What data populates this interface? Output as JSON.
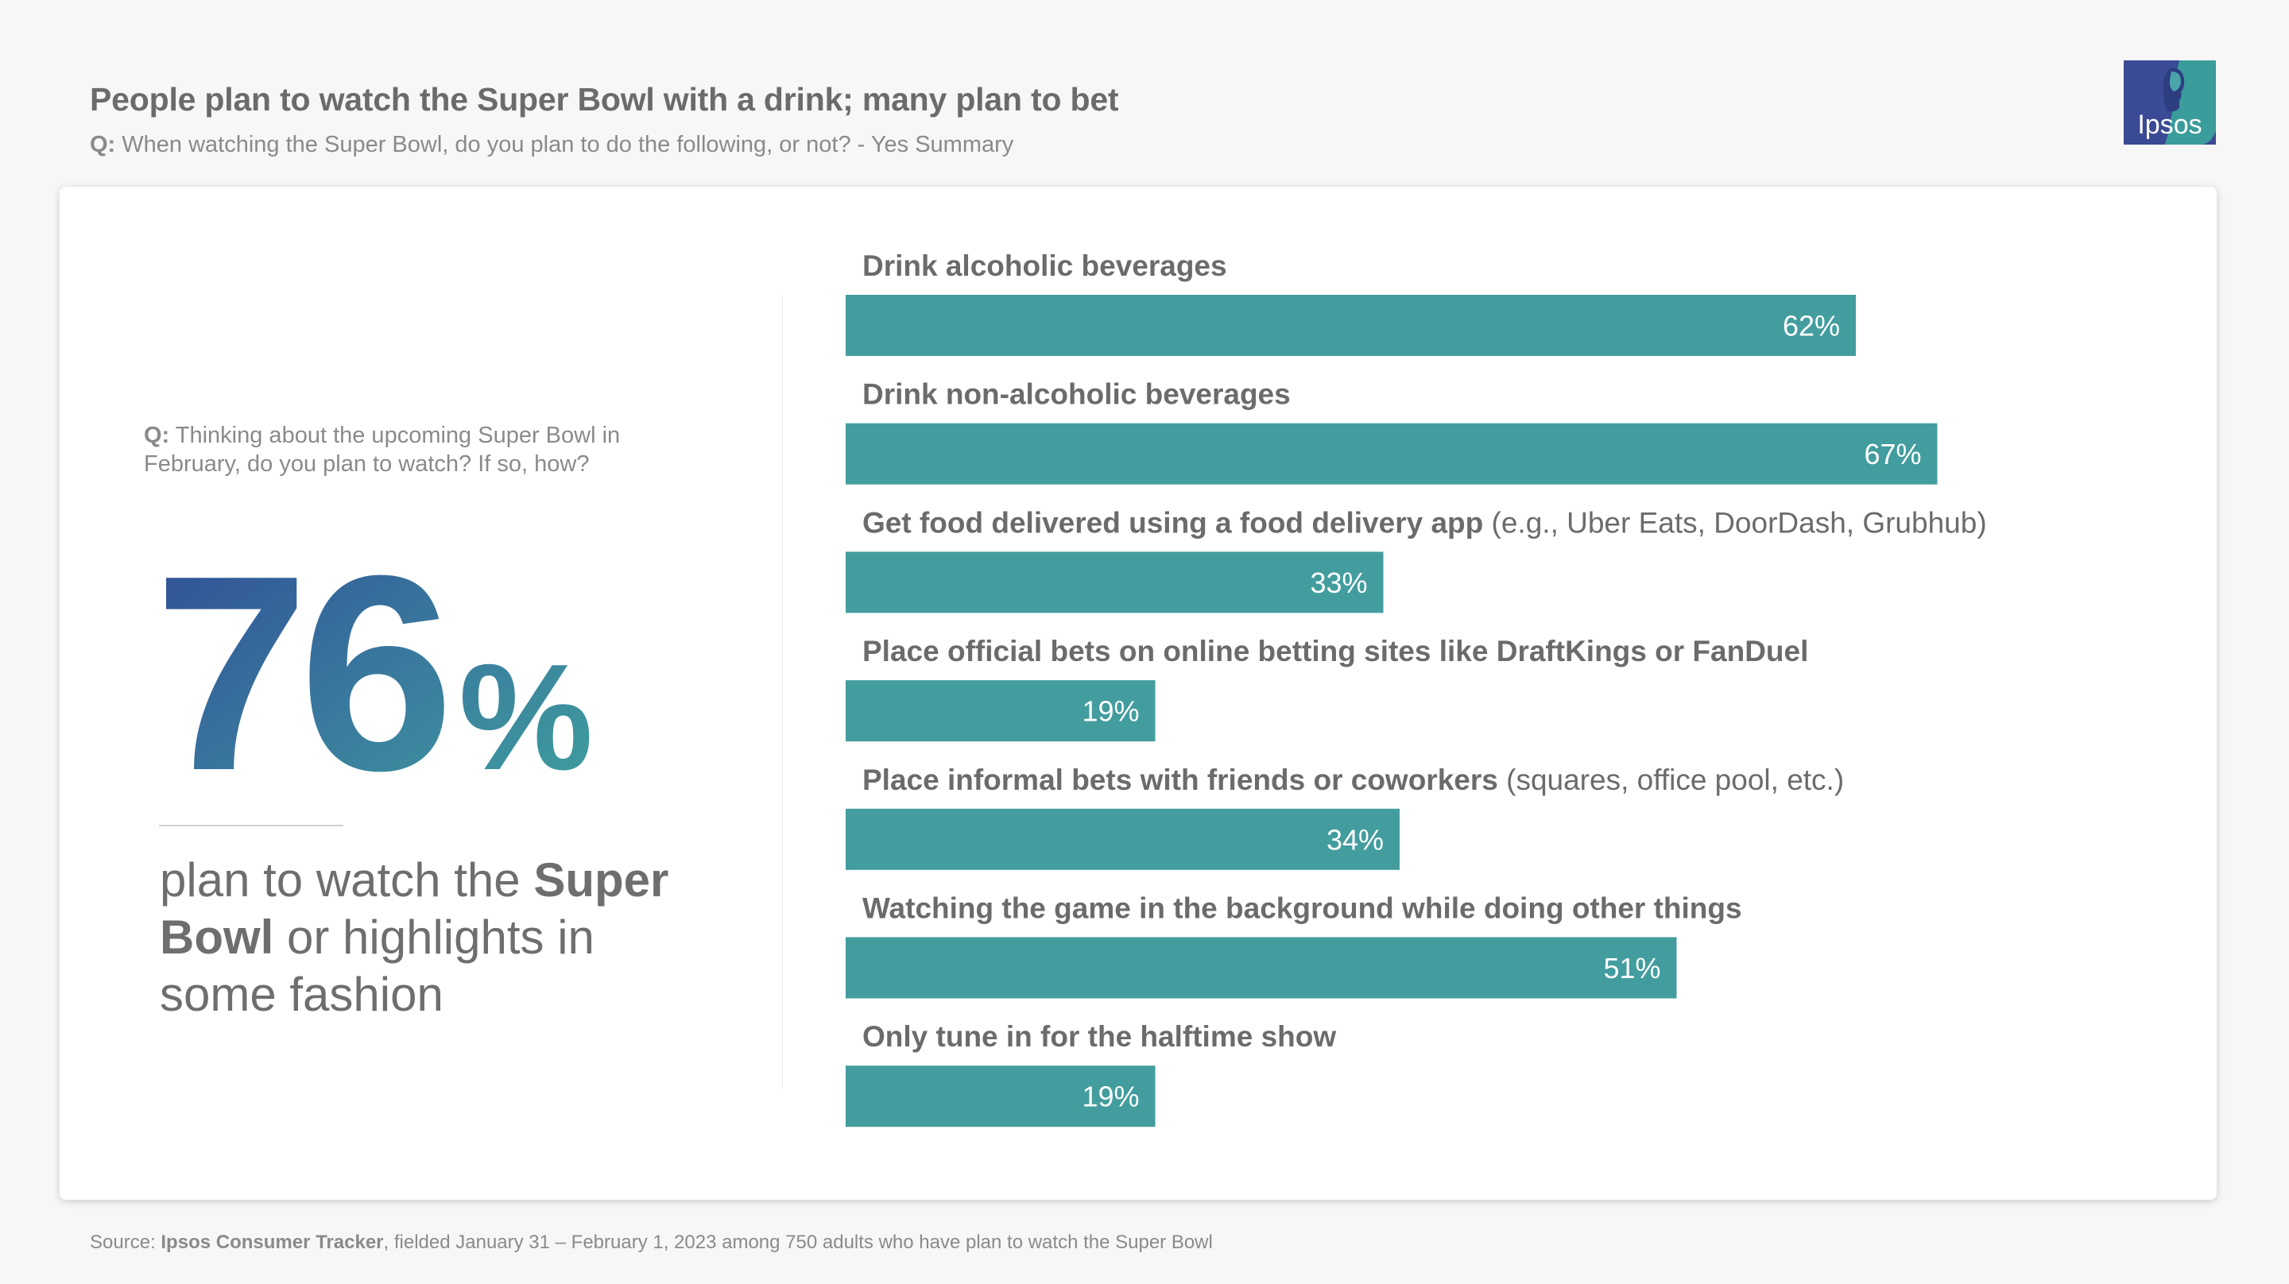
{
  "header": {
    "title": "People plan to watch the Super Bowl with a drink; many plan to bet",
    "question_prefix": "Q:",
    "question": "When watching the Super Bowl, do you plan to do the following, or not? - Yes Summary"
  },
  "logo": {
    "text": "Ipsos",
    "icon": "ipsos-logo-icon"
  },
  "left_panel": {
    "question_prefix": "Q:",
    "question": "Thinking about the upcoming Super Bowl in February, do you plan to watch? If so, how?",
    "stat_number": "76",
    "stat_unit": "%",
    "caption_1": "plan to watch the ",
    "caption_bold_1": "Super Bowl",
    "caption_2": " or highlights in some fashion"
  },
  "chart_data": {
    "type": "bar",
    "orientation": "horizontal",
    "categories": [
      "Drink alcoholic beverages",
      "Drink non-alcoholic beverages",
      "Get food delivered using a food delivery app (e.g., Uber Eats, DoorDash, Grubhub)",
      "Place official bets on online betting sites like DraftKings or FanDuel",
      "Place informal bets with friends or coworkers (squares, office pool, etc.)",
      "Watching the game in the background while doing other things",
      "Only tune in for the halftime show"
    ],
    "label_parts": [
      {
        "bold": "Drink alcoholic beverages",
        "normal": ""
      },
      {
        "bold": "Drink non-alcoholic beverages",
        "normal": ""
      },
      {
        "bold": "Get food delivered using a food delivery app",
        "normal": " (e.g., Uber Eats, DoorDash, Grubhub)"
      },
      {
        "bold": "Place official bets on online betting sites like DraftKings or FanDuel",
        "normal": ""
      },
      {
        "bold": "Place informal bets with friends or coworkers",
        "normal": " (squares, office pool, etc.)"
      },
      {
        "bold": "Watching the game in the background while doing other things",
        "normal": ""
      },
      {
        "bold": "Only tune in for the halftime show",
        "normal": ""
      }
    ],
    "values": [
      62,
      67,
      33,
      19,
      34,
      51,
      19
    ],
    "value_labels": [
      "62%",
      "67%",
      "33%",
      "19%",
      "34%",
      "51%",
      "19%"
    ],
    "unit": "%",
    "xlim": [
      0,
      100
    ],
    "grid": false,
    "legend": "none",
    "bar_color": "#439d9e"
  },
  "footer": {
    "source_prefix": "Source: ",
    "source_bold": "Ipsos Consumer Tracker",
    "source_rest": ", fielded January 31 – February 1, 2023 among 750 adults who have plan to watch the Super Bowl"
  }
}
